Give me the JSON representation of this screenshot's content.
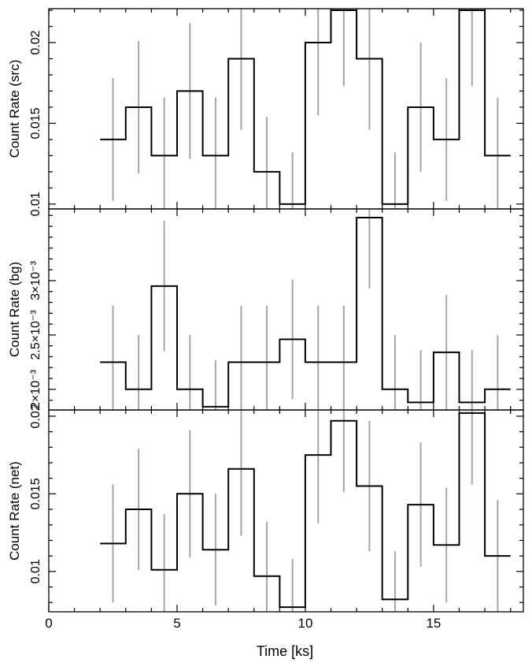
{
  "figure": {
    "xlabel": "Time [ks]"
  },
  "chart_data": [
    {
      "type": "line",
      "subtype": "step-with-errorbars",
      "ylabel": "Count Rate (src)",
      "xlim": [
        0,
        18.5
      ],
      "ylim": [
        0.0097,
        0.0221
      ],
      "xticks": [
        0,
        5,
        10,
        15
      ],
      "xtick_labels": [
        "0",
        "5",
        "10",
        "15"
      ],
      "yticks": [
        0.01,
        0.015,
        0.02
      ],
      "ytick_labels": [
        "0.01",
        "0.015",
        "0.02"
      ],
      "bin_edges": [
        2.0,
        3.0,
        4.0,
        5.0,
        6.0,
        7.0,
        8.0,
        9.0,
        10.0,
        11.0,
        12.0,
        13.0,
        14.0,
        15.0,
        16.0,
        17.0,
        18.0
      ],
      "bin_centers": [
        2.5,
        3.5,
        4.5,
        5.5,
        6.5,
        7.5,
        8.5,
        9.5,
        10.5,
        11.5,
        12.5,
        13.5,
        14.5,
        15.5,
        16.5,
        17.5
      ],
      "values": [
        0.014,
        0.016,
        0.013,
        0.017,
        0.013,
        0.019,
        0.012,
        0.01,
        0.02,
        0.022,
        0.019,
        0.01,
        0.016,
        0.014,
        0.022,
        0.013
      ],
      "errors": [
        0.0038,
        0.0041,
        0.0036,
        0.0042,
        0.0036,
        0.0044,
        0.0034,
        0.0032,
        0.0045,
        0.0047,
        0.0044,
        0.0032,
        0.004,
        0.0038,
        0.0047,
        0.0036
      ]
    },
    {
      "type": "line",
      "subtype": "step-with-errorbars",
      "ylabel": "Count Rate (bg)",
      "xlim": [
        0,
        18.5
      ],
      "ylim": [
        0.00181,
        0.00366
      ],
      "xticks": [
        0,
        5,
        10,
        15
      ],
      "xtick_labels": [
        "0",
        "5",
        "10",
        "15"
      ],
      "yticks": [
        0.002,
        0.0025,
        0.003
      ],
      "ytick_labels": [
        "2×10⁻³",
        "2.5×10⁻³",
        "3×10⁻³"
      ],
      "bin_edges": [
        2.0,
        3.0,
        4.0,
        5.0,
        6.0,
        7.0,
        8.0,
        9.0,
        10.0,
        11.0,
        12.0,
        13.0,
        14.0,
        15.0,
        16.0,
        17.0,
        18.0
      ],
      "bin_centers": [
        2.5,
        3.5,
        4.5,
        5.5,
        6.5,
        7.5,
        8.5,
        9.5,
        10.5,
        11.5,
        12.5,
        13.5,
        14.5,
        15.5,
        16.5,
        17.5
      ],
      "values": [
        0.00225,
        0.002,
        0.00295,
        0.002,
        0.00184,
        0.00225,
        0.00225,
        0.00246,
        0.00225,
        0.00225,
        0.00358,
        0.002,
        0.00188,
        0.00234,
        0.00188,
        0.002
      ],
      "errors": [
        0.00052,
        0.0005,
        0.0006,
        0.0005,
        0.00043,
        0.00052,
        0.00052,
        0.00055,
        0.00052,
        0.00052,
        0.00065,
        0.0005,
        0.00048,
        0.00053,
        0.00048,
        0.0005
      ]
    },
    {
      "type": "line",
      "subtype": "step-with-errorbars",
      "ylabel": "Count Rate (net)",
      "xlim": [
        0,
        18.5
      ],
      "ylim": [
        0.0074,
        0.0204
      ],
      "xticks": [
        0,
        5,
        10,
        15
      ],
      "xtick_labels": [
        "0",
        "5",
        "10",
        "15"
      ],
      "yticks": [
        0.01,
        0.015,
        0.02
      ],
      "ytick_labels": [
        "0.01",
        "0.015",
        "0.02"
      ],
      "bin_edges": [
        2.0,
        3.0,
        4.0,
        5.0,
        6.0,
        7.0,
        8.0,
        9.0,
        10.0,
        11.0,
        12.0,
        13.0,
        14.0,
        15.0,
        16.0,
        17.0,
        18.0
      ],
      "bin_centers": [
        2.5,
        3.5,
        4.5,
        5.5,
        6.5,
        7.5,
        8.5,
        9.5,
        10.5,
        11.5,
        12.5,
        13.5,
        14.5,
        15.5,
        16.5,
        17.5
      ],
      "values": [
        0.0118,
        0.014,
        0.0101,
        0.015,
        0.0114,
        0.0166,
        0.0097,
        0.0077,
        0.0175,
        0.0197,
        0.0155,
        0.0082,
        0.0143,
        0.0117,
        0.0202,
        0.011
      ],
      "errors": [
        0.0038,
        0.0039,
        0.0036,
        0.0041,
        0.0036,
        0.0043,
        0.0035,
        0.0031,
        0.0044,
        0.0046,
        0.0042,
        0.0031,
        0.004,
        0.0037,
        0.0046,
        0.0036
      ]
    }
  ]
}
